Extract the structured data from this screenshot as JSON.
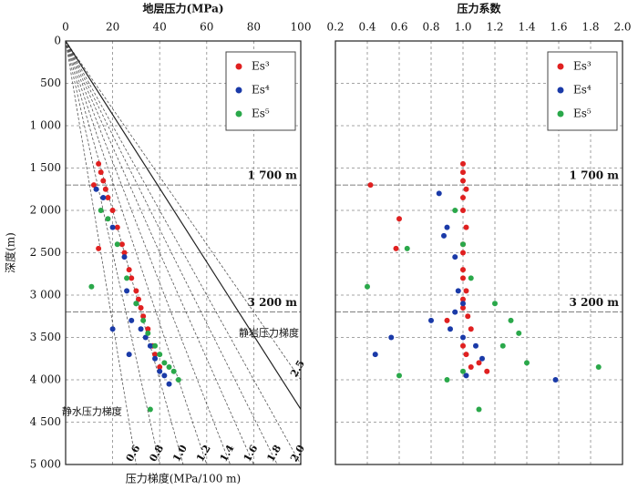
{
  "chart_data": [
    {
      "type": "scatter",
      "title": "地层压力(MPa)",
      "ylabel": "深度(m)",
      "xlabel": "压力梯度(MPa/100 m)",
      "xlim": [
        0,
        100
      ],
      "xticks": [
        0,
        20,
        40,
        60,
        80,
        100
      ],
      "ylim": [
        0,
        5000
      ],
      "yticks": [
        0,
        500,
        {
          "value": 1000,
          "label": "1 000"
        },
        {
          "value": 1500,
          "label": "1 500"
        },
        {
          "value": 2000,
          "label": "2 000"
        },
        {
          "value": 2500,
          "label": "2 500"
        },
        {
          "value": 3000,
          "label": "3 000"
        },
        {
          "value": 3500,
          "label": "3 500"
        },
        {
          "value": 4000,
          "label": "4 000"
        },
        {
          "value": 4500,
          "label": "4 500"
        },
        {
          "value": 5000,
          "label": "5 000"
        }
      ],
      "grid": true,
      "legend": "upper right",
      "ref_lines": [
        {
          "value": 1700,
          "label": "1 700 m"
        },
        {
          "value": 3200,
          "label": "3 200 m"
        }
      ],
      "gradient_lines": [
        {
          "value": 0.6,
          "label": "0.6"
        },
        {
          "value": 0.8,
          "label": "0.8"
        },
        {
          "value": 1,
          "label": "1.0"
        },
        {
          "value": 1.2,
          "label": "1.2"
        },
        {
          "value": 1.4,
          "label": "1.4"
        },
        {
          "value": 1.6,
          "label": "1.6"
        },
        {
          "value": 1.8,
          "label": "1.8"
        },
        {
          "value": 2,
          "label": "2.0"
        },
        {
          "value": 2.5,
          "label": "2.5"
        }
      ],
      "solid_line_gradient": 2.3,
      "annotations": [
        "静水压力梯度",
        "静岩压力梯度"
      ],
      "series": [
        {
          "name": "Es³",
          "color": "#e02020",
          "x": [
            14,
            15,
            16,
            17,
            18,
            20,
            22,
            24,
            25,
            27,
            28,
            30,
            31,
            32,
            33,
            35,
            37,
            38,
            40,
            12,
            14
          ],
          "values": [
            1450,
            1550,
            1650,
            1750,
            1850,
            2000,
            2200,
            2400,
            2500,
            2700,
            2800,
            2950,
            3050,
            3150,
            3250,
            3400,
            3600,
            3700,
            3850,
            1700,
            2450
          ]
        },
        {
          "name": "Es⁴",
          "color": "#1a3aa8",
          "x": [
            16,
            20,
            25,
            26,
            30,
            28,
            32,
            34,
            36,
            38,
            40,
            42,
            44,
            13,
            27,
            20
          ],
          "values": [
            1850,
            2200,
            2550,
            2950,
            3100,
            3300,
            3400,
            3500,
            3600,
            3750,
            3900,
            3950,
            4050,
            1750,
            3700,
            3400
          ]
        },
        {
          "name": "Es⁵",
          "color": "#2aa84a",
          "x": [
            11,
            15,
            18,
            22,
            26,
            30,
            33,
            35,
            38,
            40,
            42,
            44,
            46,
            48,
            36
          ],
          "values": [
            2900,
            2000,
            2100,
            2400,
            2800,
            3100,
            3300,
            3450,
            3600,
            3700,
            3800,
            3850,
            3900,
            4000,
            4350
          ]
        }
      ]
    },
    {
      "type": "scatter",
      "title": "压力系数",
      "xlim": [
        0.2,
        2
      ],
      "xticks": [
        0.2,
        0.4,
        0.6,
        0.8,
        {
          "value": 1,
          "label": "1.0"
        },
        1.2,
        1.4,
        1.6,
        1.8,
        {
          "value": 2,
          "label": "2.0"
        }
      ],
      "ylim": [
        0,
        5000
      ],
      "yticks": [
        0,
        500,
        1000,
        1500,
        2000,
        2500,
        3000,
        3500,
        4000,
        4500,
        5000
      ],
      "grid": true,
      "legend": "upper right",
      "ref_lines": [
        {
          "value": 1700,
          "label": "1 700 m"
        },
        {
          "value": 3200,
          "label": "3 200 m"
        }
      ],
      "series": [
        {
          "name": "Es³",
          "color": "#e02020",
          "x": [
            1.0,
            1.0,
            1.0,
            1.02,
            1.0,
            1.0,
            1.02,
            1.0,
            1.0,
            1.0,
            1.0,
            1.02,
            1.0,
            1.0,
            1.03,
            1.05,
            1.0,
            1.02,
            1.05,
            0.42,
            0.58,
            0.6,
            0.9,
            1.1,
            1.15
          ],
          "values": [
            1450,
            1550,
            1650,
            1750,
            1850,
            2000,
            2200,
            2400,
            2500,
            2700,
            2800,
            2950,
            3050,
            3150,
            3250,
            3400,
            3600,
            3700,
            3850,
            1700,
            2450,
            2100,
            3300,
            3800,
            3900
          ]
        },
        {
          "name": "Es⁴",
          "color": "#1a3aa8",
          "x": [
            0.85,
            0.9,
            0.95,
            0.97,
            1.0,
            0.8,
            0.92,
            1.0,
            1.08,
            1.12,
            1.02,
            1.58,
            0.55,
            0.45,
            0.95,
            0.88
          ],
          "values": [
            1800,
            2200,
            2550,
            2950,
            3100,
            3300,
            3400,
            3500,
            3600,
            3750,
            3950,
            4000,
            3500,
            3700,
            3200,
            2300
          ]
        },
        {
          "name": "Es⁵",
          "color": "#2aa84a",
          "x": [
            0.4,
            0.65,
            0.95,
            1.0,
            1.05,
            1.2,
            1.3,
            1.35,
            1.25,
            1.85,
            1.0,
            0.9,
            1.1,
            1.4,
            0.6
          ],
          "values": [
            2900,
            2450,
            2000,
            2400,
            2800,
            3100,
            3300,
            3450,
            3600,
            3850,
            3900,
            4000,
            4350,
            3800,
            3950
          ]
        }
      ]
    }
  ]
}
